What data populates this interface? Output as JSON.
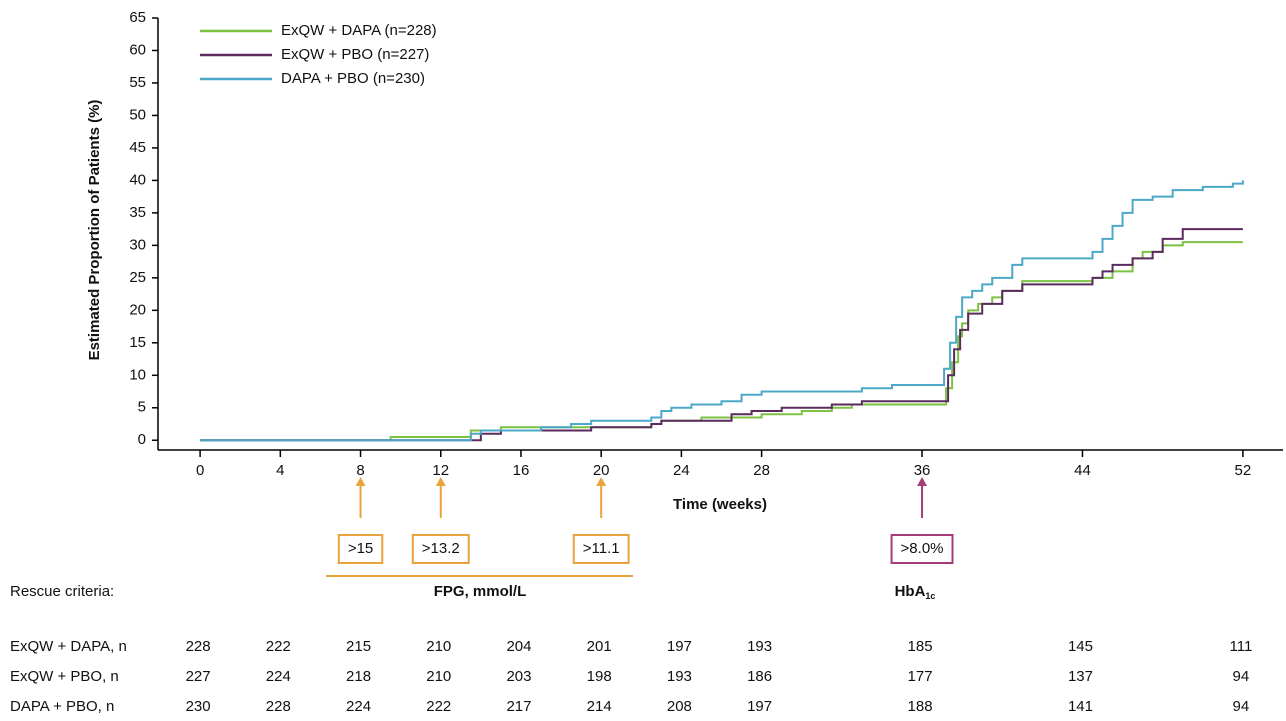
{
  "chart_data": {
    "type": "step",
    "ylabel": "Estimated Proportion of Patients (%)",
    "xlabel": "Time (weeks)",
    "xlim": [
      -2.1,
      54
    ],
    "ylim": [
      -1.5,
      65
    ],
    "xticks": [
      0,
      4,
      8,
      12,
      16,
      20,
      24,
      28,
      36,
      44,
      52
    ],
    "yticks": [
      0,
      5,
      10,
      15,
      20,
      25,
      30,
      35,
      40,
      45,
      50,
      55,
      60,
      65
    ],
    "legend": "upper left",
    "series": [
      {
        "name": "ExQW + DAPA (n=228)",
        "color": "#7dc242",
        "x": [
          0,
          9.5,
          13.5,
          15,
          22.5,
          23,
          25,
          28,
          30,
          31.5,
          32.5,
          37,
          37.2,
          37.5,
          37.8,
          38,
          38.3,
          38.8,
          39.5,
          40,
          41,
          44.5,
          45.5,
          46.5,
          47,
          48,
          49,
          52
        ],
        "values": [
          0,
          0.5,
          1.5,
          2,
          2.5,
          3,
          3.5,
          4,
          4.5,
          5,
          5.5,
          5.5,
          8,
          12,
          16,
          18,
          20,
          21,
          22,
          23,
          24.5,
          25,
          26,
          28,
          29,
          30,
          30.5,
          30.5
        ]
      },
      {
        "name": "ExQW + PBO (n=227)",
        "color": "#5b2a5e",
        "x": [
          0,
          14,
          15,
          19.5,
          22.5,
          23,
          26.5,
          27.5,
          29,
          31.5,
          33,
          37,
          37.3,
          37.6,
          37.9,
          38.3,
          39,
          40,
          41,
          44.5,
          45,
          45.5,
          46.5,
          47.5,
          48,
          49,
          52
        ],
        "values": [
          0,
          1,
          1.5,
          2,
          2.5,
          3,
          4,
          4.5,
          5,
          5.5,
          6,
          6,
          10,
          14,
          17,
          19.5,
          21,
          23,
          24,
          25,
          26,
          27,
          28,
          29,
          31,
          32.5,
          32.5
        ]
      },
      {
        "name": "DAPA + PBO (n=230)",
        "color": "#4ba8c8",
        "x": [
          0,
          13.5,
          14,
          17,
          18.5,
          19.5,
          22.5,
          23,
          23.5,
          24.5,
          26,
          27,
          28,
          33,
          34.5,
          37,
          37.1,
          37.4,
          37.7,
          38,
          38.5,
          39,
          39.5,
          40.5,
          41,
          44.5,
          45,
          45.5,
          46,
          46.5,
          47.5,
          48.5,
          50,
          51.5,
          52
        ],
        "values": [
          0,
          1,
          1.5,
          2,
          2.5,
          3,
          3.5,
          4.5,
          5,
          5.5,
          6,
          7,
          7.5,
          8,
          8.5,
          8.5,
          11,
          15,
          19,
          22,
          23,
          24,
          25,
          27,
          28,
          29,
          31,
          33,
          35,
          37,
          37.5,
          38.5,
          39,
          39.5,
          40
        ]
      }
    ]
  },
  "rescue": {
    "label": "Rescue criteria:",
    "fpg": {
      "title": "FPG, mmol/L",
      "color": "#e8a33d",
      "boxes": [
        ">15",
        ">13.2",
        ">11.1"
      ]
    },
    "hba1c": {
      "title": "HbA",
      "sub": "1c",
      "color": "#a63d7a",
      "boxes": [
        ">8.0%"
      ]
    }
  },
  "at_risk": [
    {
      "label": "ExQW + DAPA, n",
      "counts": [
        228,
        222,
        215,
        210,
        204,
        201,
        197,
        193,
        185,
        145,
        111
      ]
    },
    {
      "label": "ExQW + PBO, n",
      "counts": [
        227,
        224,
        218,
        210,
        203,
        198,
        193,
        186,
        177,
        137,
        94
      ]
    },
    {
      "label": "DAPA + PBO, n",
      "counts": [
        230,
        228,
        224,
        222,
        217,
        214,
        208,
        197,
        188,
        141,
        94
      ]
    }
  ]
}
